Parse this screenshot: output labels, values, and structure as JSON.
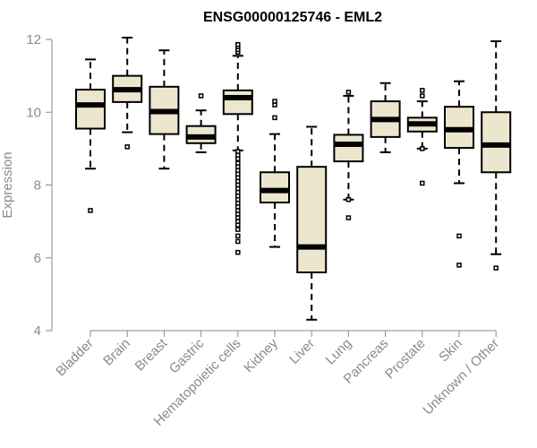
{
  "chart_data": {
    "type": "box",
    "title": "ENSG00000125746 - EML2",
    "ylabel": "Expression",
    "ylim": [
      4,
      12
    ],
    "yticks": [
      "4",
      "6",
      "8",
      "10",
      "12"
    ],
    "grid": false,
    "box_fill": "#ede6cf",
    "median_color": "#000000",
    "categories": [
      {
        "label": "Bladder",
        "whisker_low": 8.45,
        "q1": 9.55,
        "median": 10.2,
        "q3": 10.62,
        "whisker_high": 11.45,
        "outliers": [
          7.3
        ]
      },
      {
        "label": "Brain",
        "whisker_low": 9.45,
        "q1": 10.28,
        "median": 10.62,
        "q3": 11.0,
        "whisker_high": 12.05,
        "outliers": [
          9.05
        ]
      },
      {
        "label": "Breast",
        "whisker_low": 8.45,
        "q1": 9.4,
        "median": 10.02,
        "q3": 10.7,
        "whisker_high": 11.7,
        "outliers": []
      },
      {
        "label": "Gastric",
        "whisker_low": 8.9,
        "q1": 9.15,
        "median": 9.32,
        "q3": 9.62,
        "whisker_high": 10.05,
        "outliers": [
          10.45
        ]
      },
      {
        "label": "Hematopoietic cells",
        "whisker_low": 8.95,
        "q1": 9.95,
        "median": 10.4,
        "q3": 10.6,
        "whisker_high": 11.55,
        "outliers": [
          11.65,
          11.72,
          11.8,
          11.86,
          8.92,
          8.82,
          8.72,
          8.6,
          8.5,
          8.4,
          8.3,
          8.2,
          8.1,
          8.0,
          7.9,
          7.8,
          7.7,
          7.6,
          7.5,
          7.4,
          7.3,
          7.2,
          7.1,
          7.0,
          6.9,
          6.78,
          6.6,
          6.45,
          6.15
        ]
      },
      {
        "label": "Kidney",
        "whisker_low": 6.3,
        "q1": 7.52,
        "median": 7.85,
        "q3": 8.35,
        "whisker_high": 9.4,
        "outliers": [
          10.2,
          10.3,
          9.85
        ]
      },
      {
        "label": "Liver",
        "whisker_low": 4.3,
        "q1": 5.6,
        "median": 6.3,
        "q3": 8.5,
        "whisker_high": 9.6,
        "outliers": []
      },
      {
        "label": "Lung",
        "whisker_low": 7.6,
        "q1": 8.65,
        "median": 9.12,
        "q3": 9.38,
        "whisker_high": 10.45,
        "outliers": [
          10.55,
          7.6,
          7.1
        ]
      },
      {
        "label": "Pancreas",
        "whisker_low": 8.9,
        "q1": 9.32,
        "median": 9.8,
        "q3": 10.3,
        "whisker_high": 10.8,
        "outliers": []
      },
      {
        "label": "Prostate",
        "whisker_low": 9.0,
        "q1": 9.47,
        "median": 9.68,
        "q3": 9.85,
        "whisker_high": 10.3,
        "outliers": [
          10.6,
          10.45,
          9.0,
          8.05
        ]
      },
      {
        "label": "Skin",
        "whisker_low": 8.05,
        "q1": 9.02,
        "median": 9.52,
        "q3": 10.15,
        "whisker_high": 10.85,
        "outliers": [
          6.6,
          5.8
        ]
      },
      {
        "label": "Unknown / Other",
        "whisker_low": 6.1,
        "q1": 8.35,
        "median": 9.1,
        "q3": 10.0,
        "whisker_high": 11.95,
        "outliers": [
          5.72
        ]
      }
    ]
  }
}
